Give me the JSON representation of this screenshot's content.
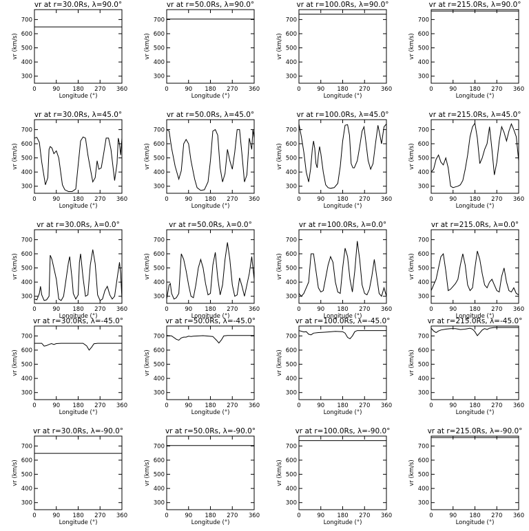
{
  "panel_titles": [
    [
      "vr at r=30.0Rs, λ=90.0°",
      "vr at r=50.0Rs, λ=90.0°",
      "vr at r=100.0Rs, λ=90.0°",
      "vr at r=215.0Rs, λ=90.0°"
    ],
    [
      "vr at r=30.0Rs, λ=45.0°",
      "vr at r=50.0Rs, λ=45.0°",
      "vr at r=100.0Rs, λ=45.0°",
      "vr at r=215.0Rs, λ=45.0°"
    ],
    [
      "vr at r=30.0Rs, λ=0.0°",
      "vr at r=50.0Rs, λ=0.0°",
      "vr at r=100.0Rs, λ=0.0°",
      "vr at r=215.0Rs, λ=0.0°"
    ],
    [
      "vr at r=30.0Rs, λ=-45.0°",
      "vr at r=50.0Rs, λ=-45.0°",
      "vr at r=100.0Rs, λ=-45.0°",
      "vr at r=215.0Rs, λ=-45.0°"
    ],
    [
      "vr at r=30.0Rs, λ=-90.0°",
      "vr at r=50.0Rs, λ=-90.0°",
      "vr at r=100.0Rs, λ=-90.0°",
      "vr at r=215.0Rs, λ=-90.0°"
    ]
  ],
  "chart_data": {
    "type": "line",
    "layout": "grid",
    "rows": 5,
    "cols": 4,
    "xlabel": "Longitude (°)",
    "ylabel": "vr (km/s)",
    "xlim": [
      0,
      360
    ],
    "ylim": [
      250,
      770
    ],
    "xticks": [
      0,
      90,
      180,
      270,
      360
    ],
    "yticks": [
      300,
      400,
      500,
      600,
      700
    ],
    "grid": false,
    "line_color": "#000000",
    "radii": [
      "30.0Rs",
      "50.0Rs",
      "100.0Rs",
      "215.0Rs"
    ],
    "latitudes": [
      "90.0°",
      "45.0°",
      "0.0°",
      "-45.0°",
      "-90.0°"
    ],
    "panels": [
      {
        "row": 0,
        "col": 0,
        "x": [
          0,
          360
        ],
        "y": [
          648,
          648
        ]
      },
      {
        "row": 0,
        "col": 1,
        "x": [
          0,
          360
        ],
        "y": [
          703,
          703
        ]
      },
      {
        "row": 0,
        "col": 2,
        "x": [
          0,
          360
        ],
        "y": [
          738,
          738
        ]
      },
      {
        "row": 0,
        "col": 3,
        "x": [
          0,
          360
        ],
        "y": [
          760,
          760
        ]
      },
      {
        "row": 1,
        "col": 0,
        "x": [
          0,
          10,
          20,
          30,
          45,
          55,
          60,
          65,
          72,
          80,
          90,
          100,
          115,
          125,
          140,
          155,
          170,
          190,
          200,
          210,
          220,
          240,
          250,
          258,
          265,
          275,
          285,
          295,
          305,
          315,
          330,
          335,
          340,
          345,
          350,
          355,
          360
        ],
        "y": [
          640,
          645,
          610,
          470,
          310,
          360,
          560,
          580,
          570,
          530,
          550,
          500,
          310,
          275,
          262,
          262,
          280,
          620,
          648,
          640,
          520,
          330,
          360,
          480,
          420,
          430,
          530,
          640,
          640,
          560,
          340,
          400,
          460,
          640,
          600,
          520,
          640
        ]
      },
      {
        "row": 1,
        "col": 1,
        "x": [
          0,
          10,
          20,
          35,
          50,
          60,
          70,
          80,
          90,
          100,
          115,
          125,
          140,
          155,
          170,
          180,
          190,
          200,
          210,
          220,
          230,
          240,
          250,
          260,
          270,
          280,
          290,
          300,
          310,
          320,
          330,
          340,
          350,
          355,
          360
        ],
        "y": [
          700,
          690,
          570,
          440,
          350,
          410,
          600,
          630,
          600,
          480,
          350,
          290,
          270,
          275,
          330,
          480,
          690,
          700,
          660,
          430,
          330,
          390,
          560,
          480,
          420,
          540,
          700,
          700,
          520,
          330,
          380,
          640,
          560,
          700,
          640
        ]
      },
      {
        "row": 1,
        "col": 2,
        "x": [
          0,
          10,
          20,
          30,
          40,
          48,
          55,
          60,
          65,
          70,
          75,
          80,
          85,
          90,
          100,
          110,
          120,
          130,
          145,
          160,
          170,
          180,
          190,
          200,
          208,
          215,
          222,
          228,
          240,
          250,
          260,
          268,
          275,
          285,
          295,
          305,
          315,
          325,
          330,
          340,
          350,
          360
        ],
        "y": [
          740,
          650,
          540,
          400,
          330,
          420,
          560,
          620,
          570,
          460,
          430,
          520,
          580,
          530,
          400,
          310,
          290,
          285,
          290,
          320,
          440,
          620,
          730,
          735,
          660,
          460,
          430,
          430,
          480,
          580,
          690,
          720,
          620,
          480,
          420,
          460,
          600,
          730,
          690,
          600,
          720,
          740
        ]
      },
      {
        "row": 1,
        "col": 3,
        "x": [
          0,
          10,
          20,
          30,
          40,
          50,
          60,
          70,
          80,
          90,
          100,
          110,
          120,
          130,
          140,
          150,
          160,
          170,
          180,
          190,
          200,
          210,
          220,
          230,
          240,
          250,
          260,
          270,
          280,
          290,
          300,
          310,
          320,
          330,
          340,
          350,
          360
        ],
        "y": [
          400,
          420,
          490,
          520,
          470,
          450,
          500,
          430,
          300,
          290,
          295,
          300,
          310,
          340,
          420,
          520,
          650,
          720,
          745,
          640,
          460,
          500,
          560,
          600,
          720,
          560,
          380,
          470,
          620,
          720,
          680,
          620,
          690,
          740,
          700,
          650,
          480
        ]
      },
      {
        "row": 2,
        "col": 0,
        "x": [
          0,
          10,
          20,
          25,
          30,
          40,
          50,
          60,
          65,
          72,
          80,
          90,
          100,
          110,
          120,
          130,
          140,
          145,
          150,
          155,
          160,
          170,
          180,
          185,
          190,
          200,
          210,
          220,
          230,
          240,
          250,
          255,
          260,
          270,
          280,
          290,
          300,
          310,
          320,
          330,
          340,
          350,
          355,
          360
        ],
        "y": [
          280,
          275,
          320,
          370,
          310,
          270,
          275,
          300,
          590,
          560,
          500,
          420,
          280,
          270,
          300,
          420,
          540,
          580,
          500,
          420,
          320,
          280,
          310,
          540,
          600,
          430,
          300,
          310,
          520,
          630,
          530,
          420,
          310,
          270,
          280,
          340,
          370,
          310,
          280,
          300,
          420,
          540,
          460,
          280
        ]
      },
      {
        "row": 2,
        "col": 1,
        "x": [
          0,
          10,
          15,
          20,
          30,
          40,
          50,
          60,
          70,
          80,
          90,
          100,
          110,
          120,
          130,
          140,
          150,
          160,
          170,
          180,
          190,
          200,
          210,
          220,
          230,
          240,
          250,
          260,
          270,
          280,
          290,
          300,
          310,
          320,
          330,
          340,
          350,
          360
        ],
        "y": [
          280,
          380,
          390,
          320,
          280,
          290,
          320,
          600,
          560,
          480,
          380,
          300,
          290,
          380,
          500,
          560,
          500,
          390,
          310,
          320,
          520,
          610,
          430,
          310,
          380,
          560,
          680,
          560,
          380,
          300,
          310,
          430,
          370,
          300,
          380,
          460,
          580,
          420
        ]
      },
      {
        "row": 2,
        "col": 2,
        "x": [
          0,
          10,
          20,
          30,
          40,
          50,
          60,
          70,
          80,
          90,
          100,
          110,
          120,
          130,
          140,
          150,
          160,
          170,
          180,
          190,
          200,
          210,
          220,
          230,
          240,
          250,
          260,
          270,
          280,
          290,
          300,
          310,
          320,
          330,
          340,
          350,
          360
        ],
        "y": [
          320,
          300,
          320,
          360,
          400,
          600,
          600,
          480,
          360,
          330,
          340,
          430,
          520,
          580,
          540,
          400,
          330,
          320,
          500,
          640,
          580,
          420,
          330,
          480,
          690,
          560,
          380,
          320,
          310,
          350,
          440,
          560,
          440,
          320,
          300,
          360,
          300
        ]
      },
      {
        "row": 2,
        "col": 3,
        "x": [
          0,
          10,
          20,
          30,
          40,
          50,
          60,
          70,
          80,
          90,
          100,
          110,
          120,
          130,
          140,
          150,
          160,
          170,
          180,
          190,
          200,
          210,
          220,
          230,
          240,
          250,
          260,
          270,
          280,
          290,
          300,
          310,
          320,
          330,
          340,
          350,
          360
        ],
        "y": [
          340,
          380,
          420,
          500,
          580,
          600,
          480,
          340,
          350,
          370,
          390,
          420,
          520,
          600,
          520,
          380,
          340,
          360,
          500,
          620,
          560,
          460,
          380,
          360,
          400,
          420,
          380,
          340,
          330,
          440,
          500,
          400,
          340,
          330,
          360,
          320,
          310
        ]
      },
      {
        "row": 3,
        "col": 0,
        "x": [
          0,
          30,
          40,
          50,
          60,
          70,
          80,
          90,
          110,
          150,
          200,
          215,
          225,
          235,
          245,
          260,
          300,
          360
        ],
        "y": [
          648,
          648,
          628,
          632,
          640,
          646,
          640,
          646,
          648,
          648,
          648,
          630,
          600,
          620,
          645,
          648,
          648,
          648
        ]
      },
      {
        "row": 3,
        "col": 1,
        "x": [
          0,
          20,
          40,
          50,
          60,
          70,
          80,
          90,
          100,
          110,
          150,
          190,
          205,
          215,
          225,
          235,
          250,
          300,
          360
        ],
        "y": [
          703,
          700,
          676,
          670,
          686,
          692,
          692,
          698,
          696,
          698,
          702,
          696,
          670,
          650,
          672,
          700,
          703,
          703,
          703
        ]
      },
      {
        "row": 3,
        "col": 2,
        "x": [
          0,
          20,
          30,
          40,
          50,
          60,
          80,
          100,
          120,
          150,
          180,
          190,
          200,
          210,
          220,
          230,
          240,
          260,
          300,
          360
        ],
        "y": [
          738,
          728,
          730,
          712,
          708,
          720,
          724,
          726,
          728,
          732,
          730,
          720,
          690,
          680,
          700,
          730,
          738,
          738,
          738,
          738
        ]
      },
      {
        "row": 3,
        "col": 3,
        "x": [
          0,
          10,
          20,
          30,
          40,
          60,
          80,
          100,
          120,
          140,
          160,
          170,
          180,
          190,
          200,
          210,
          220,
          230,
          240,
          260,
          300,
          360
        ],
        "y": [
          755,
          735,
          724,
          735,
          742,
          748,
          752,
          752,
          745,
          748,
          755,
          748,
          730,
          702,
          722,
          742,
          752,
          745,
          755,
          760,
          760,
          760
        ]
      },
      {
        "row": 4,
        "col": 0,
        "x": [
          0,
          360
        ],
        "y": [
          648,
          648
        ]
      },
      {
        "row": 4,
        "col": 1,
        "x": [
          0,
          360
        ],
        "y": [
          703,
          703
        ]
      },
      {
        "row": 4,
        "col": 2,
        "x": [
          0,
          360
        ],
        "y": [
          738,
          738
        ]
      },
      {
        "row": 4,
        "col": 3,
        "x": [
          0,
          360
        ],
        "y": [
          760,
          760
        ]
      }
    ]
  }
}
